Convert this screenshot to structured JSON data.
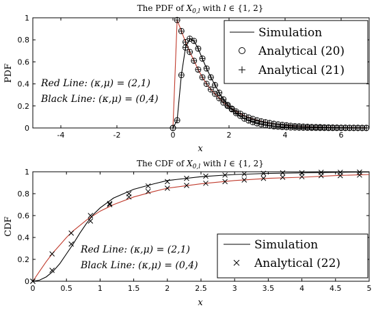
{
  "chart_data": [
    {
      "type": "line",
      "title": "The PDF of X0,l with l ∈ {1, 2}",
      "xlabel": "x",
      "ylabel": "PDF",
      "xlim": [
        -5,
        7
      ],
      "ylim": [
        0,
        1
      ],
      "xticks": [
        -4,
        -2,
        0,
        2,
        4,
        6
      ],
      "yticks": [
        0,
        0.2,
        0.4,
        0.6,
        0.8,
        1
      ],
      "xtick_labels": [
        "-4",
        "-2",
        "0",
        "2",
        "4",
        "6"
      ],
      "ytick_labels": [
        "0",
        "0.2",
        "0.4",
        "0.6",
        "0.8",
        "1"
      ],
      "legend": {
        "placement": "top-right",
        "entries": [
          "Simulation",
          "Analytical (20)",
          "Analytical (21)"
        ]
      },
      "annotations": [
        "Red Line: (κ,μ) = (2,1)",
        "Black Line: (κ,μ) = (0,4)"
      ],
      "series": [
        {
          "name": "Red Line: (κ,μ) = (2,1)",
          "color": "#c0392b",
          "x": [
            0.0,
            0.15,
            0.3,
            0.45,
            0.6,
            0.75,
            0.9,
            1.05,
            1.2,
            1.35,
            1.5,
            1.65,
            1.8,
            1.95,
            2.1,
            2.25,
            2.4,
            2.55,
            2.7,
            2.85,
            3.0,
            3.15,
            3.3,
            3.45,
            3.6,
            3.75,
            3.9,
            4.05,
            4.2,
            4.35,
            4.5,
            4.65,
            4.8,
            4.95,
            5.1,
            5.25,
            5.4,
            5.55,
            5.7,
            5.85,
            6.0,
            6.15,
            6.3,
            6.45,
            6.6,
            6.75,
            6.9
          ],
          "y": [
            0.0,
            0.98,
            0.88,
            0.78,
            0.69,
            0.61,
            0.53,
            0.46,
            0.4,
            0.35,
            0.31,
            0.27,
            0.23,
            0.2,
            0.175,
            0.15,
            0.13,
            0.11,
            0.095,
            0.082,
            0.07,
            0.06,
            0.052,
            0.045,
            0.038,
            0.033,
            0.028,
            0.024,
            0.02,
            0.017,
            0.015,
            0.013,
            0.011,
            0.009,
            0.008,
            0.007,
            0.006,
            0.005,
            0.004,
            0.0035,
            0.003,
            0.0025,
            0.002,
            0.0018,
            0.0015,
            0.0012,
            0.001
          ]
        },
        {
          "name": "Black Line: (κ,μ) = (0,4)",
          "color": "#000000",
          "x": [
            0.0,
            0.15,
            0.3,
            0.45,
            0.6,
            0.75,
            0.9,
            1.05,
            1.2,
            1.35,
            1.5,
            1.65,
            1.8,
            1.95,
            2.1,
            2.25,
            2.4,
            2.55,
            2.7,
            2.85,
            3.0,
            3.15,
            3.3,
            3.45,
            3.6,
            3.75,
            3.9,
            4.05,
            4.2,
            4.35,
            4.5,
            4.65,
            4.8,
            4.95,
            5.1,
            5.25,
            5.4,
            5.55,
            5.7,
            5.85,
            6.0,
            6.15,
            6.3,
            6.45,
            6.6,
            6.75,
            6.9
          ],
          "y": [
            0.0,
            0.07,
            0.48,
            0.73,
            0.81,
            0.79,
            0.72,
            0.63,
            0.54,
            0.46,
            0.39,
            0.32,
            0.26,
            0.21,
            0.17,
            0.135,
            0.11,
            0.085,
            0.068,
            0.053,
            0.042,
            0.033,
            0.026,
            0.02,
            0.015,
            0.012,
            0.009,
            0.007,
            0.005,
            0.004,
            0.003,
            0.0022,
            0.0017,
            0.0013,
            0.001,
            0.0008,
            0.0006,
            0.0004,
            0.0003,
            0.0002,
            0.00015,
            0.0001,
            0.0001,
            5e-05,
            5e-05,
            0.0,
            0.0
          ]
        }
      ]
    },
    {
      "type": "line",
      "title": "The CDF of X0,l with l ∈ {1, 2}",
      "xlabel": "x",
      "ylabel": "CDF",
      "xlim": [
        0,
        5
      ],
      "ylim": [
        0,
        1
      ],
      "xticks": [
        0,
        0.5,
        1,
        1.5,
        2,
        2.5,
        3,
        3.5,
        4,
        4.5,
        5
      ],
      "yticks": [
        0,
        0.2,
        0.4,
        0.6,
        0.8,
        1
      ],
      "xtick_labels": [
        "0",
        "0.5",
        "1",
        "1.5",
        "2",
        "2.5",
        "3",
        "3.5",
        "4",
        "4.5",
        "5"
      ],
      "ytick_labels": [
        "0",
        "0.2",
        "0.4",
        "0.6",
        "0.8",
        "1"
      ],
      "legend": {
        "placement": "bottom-right",
        "entries": [
          "Simulation",
          "Analytical (22)"
        ]
      },
      "annotations": [
        "Red Line: (κ,μ) = (2,1)",
        "Black Line: (κ,μ) = (0,4)"
      ],
      "series": [
        {
          "name": "Red Line: (κ,μ) = (2,1)",
          "color": "#c0392b",
          "x": [
            0.0,
            0.1,
            0.2,
            0.3,
            0.4,
            0.5,
            0.6,
            0.8,
            1.0,
            1.2,
            1.5,
            1.8,
            2.0,
            2.5,
            3.0,
            3.5,
            4.0,
            4.5,
            5.0
          ],
          "y": [
            0.0,
            0.09,
            0.18,
            0.26,
            0.33,
            0.4,
            0.46,
            0.56,
            0.64,
            0.7,
            0.77,
            0.82,
            0.85,
            0.89,
            0.92,
            0.94,
            0.95,
            0.965,
            0.975
          ],
          "markers": {
            "x": [
              0.0,
              0.286,
              0.571,
              0.857,
              1.143,
              1.429,
              1.714,
              2.0,
              2.286,
              2.571,
              2.857,
              3.143,
              3.429,
              3.714,
              4.0,
              4.286,
              4.571,
              4.857
            ],
            "y": [
              0.0,
              0.25,
              0.44,
              0.6,
              0.7,
              0.77,
              0.82,
              0.85,
              0.875,
              0.895,
              0.91,
              0.925,
              0.94,
              0.95,
              0.955,
              0.965,
              0.965,
              0.97
            ]
          }
        },
        {
          "name": "Black Line: (κ,μ) = (0,4)",
          "color": "#000000",
          "x": [
            0.0,
            0.1,
            0.2,
            0.3,
            0.4,
            0.5,
            0.6,
            0.7,
            0.8,
            0.9,
            1.0,
            1.2,
            1.5,
            1.8,
            2.0,
            2.5,
            3.0,
            3.5,
            4.0,
            4.5,
            5.0
          ],
          "y": [
            0.0,
            0.01,
            0.04,
            0.09,
            0.16,
            0.25,
            0.34,
            0.44,
            0.53,
            0.61,
            0.67,
            0.76,
            0.84,
            0.89,
            0.92,
            0.955,
            0.975,
            0.985,
            0.99,
            0.995,
            0.998
          ],
          "markers": {
            "x": [
              0.0,
              0.286,
              0.571,
              0.857,
              1.143,
              1.429,
              1.714,
              2.0,
              2.286,
              2.571,
              2.857,
              3.143,
              3.429,
              3.714,
              4.0,
              4.286,
              4.571,
              4.857
            ],
            "y": [
              0.0,
              0.1,
              0.34,
              0.55,
              0.71,
              0.8,
              0.87,
              0.91,
              0.94,
              0.96,
              0.97,
              0.98,
              0.985,
              0.99,
              0.99,
              0.995,
              0.995,
              0.997
            ]
          }
        }
      ]
    }
  ]
}
